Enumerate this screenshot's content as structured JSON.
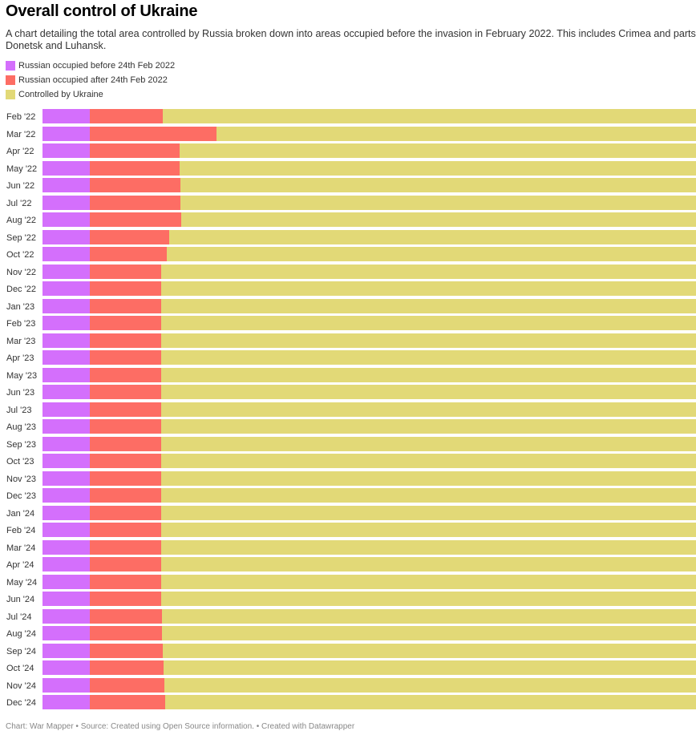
{
  "header": {
    "title": "Overall control of Ukraine",
    "description": "A chart detailing the total area controlled by Russia broken down into areas occupied before the invasion in February 2022. This includes Crimea and parts of Donetsk and Luhansk."
  },
  "footer": {
    "text": "Chart: War Mapper • Source: Created using Open Source information. • Created with Datawrapper"
  },
  "chart_data": {
    "type": "bar",
    "orientation": "horizontal",
    "stacked": true,
    "title": "Overall control of Ukraine",
    "xlabel": "",
    "ylabel": "",
    "unit": "% of total area",
    "xlim": [
      0,
      100
    ],
    "grid": false,
    "legend_position": "top-left",
    "legend": [
      {
        "name": "Russian occupied before 24th Feb 2022",
        "color": "#d46ffc"
      },
      {
        "name": "Russian occupied after 24th Feb 2022",
        "color": "#fd6d64"
      },
      {
        "name": "Controlled by Ukraine",
        "color": "#e2d977"
      }
    ],
    "categories": [
      "Feb '22",
      "Mar '22",
      "Apr '22",
      "May '22",
      "Jun '22",
      "Jul '22",
      "Aug '22",
      "Sep '22",
      "Oct '22",
      "Nov '22",
      "Dec '22",
      "Jan '23",
      "Feb '23",
      "Mar '23",
      "Apr '23",
      "May '23",
      "Jun '23",
      "Jul '23",
      "Aug '23",
      "Sep '23",
      "Oct '23",
      "Nov '23",
      "Dec '23",
      "Jan '24",
      "Feb '24",
      "Mar '24",
      "Apr '24",
      "May '24",
      "Jun '24",
      "Jul '24",
      "Aug '24",
      "Sep '24",
      "Oct '24",
      "Nov '24",
      "Dec '24"
    ],
    "series": [
      {
        "name": "Russian occupied before 24th Feb 2022",
        "values": [
          7.0,
          7.0,
          7.0,
          7.0,
          7.0,
          7.0,
          7.0,
          7.0,
          7.0,
          7.0,
          7.0,
          7.0,
          7.0,
          7.0,
          7.0,
          7.0,
          7.0,
          7.0,
          7.0,
          7.0,
          7.0,
          7.0,
          7.0,
          7.0,
          7.0,
          7.0,
          7.0,
          7.0,
          7.0,
          7.0,
          7.0,
          7.0,
          7.0,
          7.0,
          7.0
        ]
      },
      {
        "name": "Russian occupied after 24th Feb 2022",
        "values": [
          10.8,
          18.7,
          13.3,
          13.3,
          13.4,
          13.4,
          13.5,
          11.7,
          11.4,
          10.6,
          10.6,
          10.6,
          10.6,
          10.6,
          10.6,
          10.6,
          10.6,
          10.6,
          10.6,
          10.6,
          10.6,
          10.6,
          10.6,
          10.6,
          10.6,
          10.6,
          10.6,
          10.6,
          10.6,
          10.7,
          10.7,
          10.8,
          10.9,
          11.0,
          11.2
        ]
      },
      {
        "name": "Controlled by Ukraine",
        "values": [
          82.2,
          74.3,
          79.7,
          79.7,
          79.6,
          79.6,
          79.5,
          81.3,
          81.6,
          82.4,
          82.4,
          82.4,
          82.4,
          82.4,
          82.4,
          82.4,
          82.4,
          82.4,
          82.4,
          82.4,
          82.4,
          82.4,
          82.4,
          82.4,
          82.4,
          82.4,
          82.4,
          82.4,
          82.4,
          82.3,
          82.3,
          82.2,
          82.1,
          82.0,
          81.8
        ]
      }
    ]
  }
}
